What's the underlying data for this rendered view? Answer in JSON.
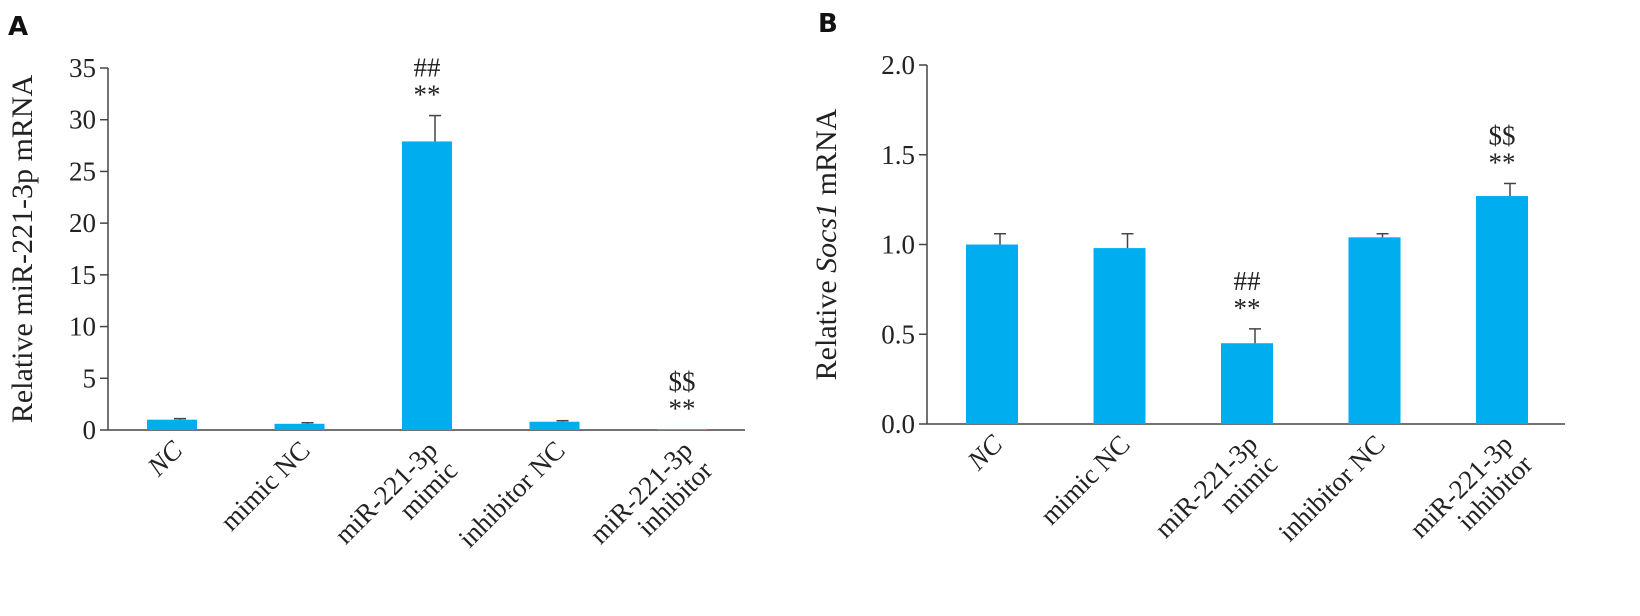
{
  "chart_data": [
    {
      "panel": "A",
      "type": "bar",
      "ylabel": "Relative miR-221-3p mRNA",
      "ylim": [
        0,
        35
      ],
      "yticks": [
        "0",
        "5",
        "10",
        "15",
        "20",
        "25",
        "30",
        "35"
      ],
      "categories": [
        [
          "NC"
        ],
        [
          "mimic NC"
        ],
        [
          "miR-221-3p",
          "mimic"
        ],
        [
          "inhibitor NC"
        ],
        [
          "miR-221-3p",
          "inhibitor"
        ]
      ],
      "values": [
        1.0,
        0.6,
        27.9,
        0.8,
        0.05
      ],
      "errors": [
        0.1,
        0.1,
        2.5,
        0.1,
        0.0
      ],
      "annotations": [
        [],
        [],
        [
          "##",
          "**"
        ],
        [],
        [
          "$$",
          "**"
        ]
      ],
      "color": "#00aeef"
    },
    {
      "panel": "B",
      "type": "bar",
      "ylabel_parts": [
        {
          "text": "Relative ",
          "italic": false
        },
        {
          "text": "Socs1",
          "italic": true
        },
        {
          "text": " mRNA",
          "italic": false
        }
      ],
      "ylim": [
        0,
        2.0
      ],
      "yticks": [
        "0.0",
        "0.5",
        "1.0",
        "1.5",
        "2.0"
      ],
      "categories": [
        [
          "NC"
        ],
        [
          "mimic NC"
        ],
        [
          "miR-221-3p",
          "mimic"
        ],
        [
          "inhibitor NC"
        ],
        [
          "miR-221-3p",
          "inhibitor"
        ]
      ],
      "values": [
        1.0,
        0.98,
        0.45,
        1.04,
        1.27
      ],
      "errors": [
        0.06,
        0.08,
        0.08,
        0.02,
        0.07
      ],
      "annotations": [
        [],
        [],
        [
          "##",
          "**"
        ],
        [],
        [
          "$$",
          "**"
        ]
      ],
      "color": "#00aeef"
    }
  ]
}
